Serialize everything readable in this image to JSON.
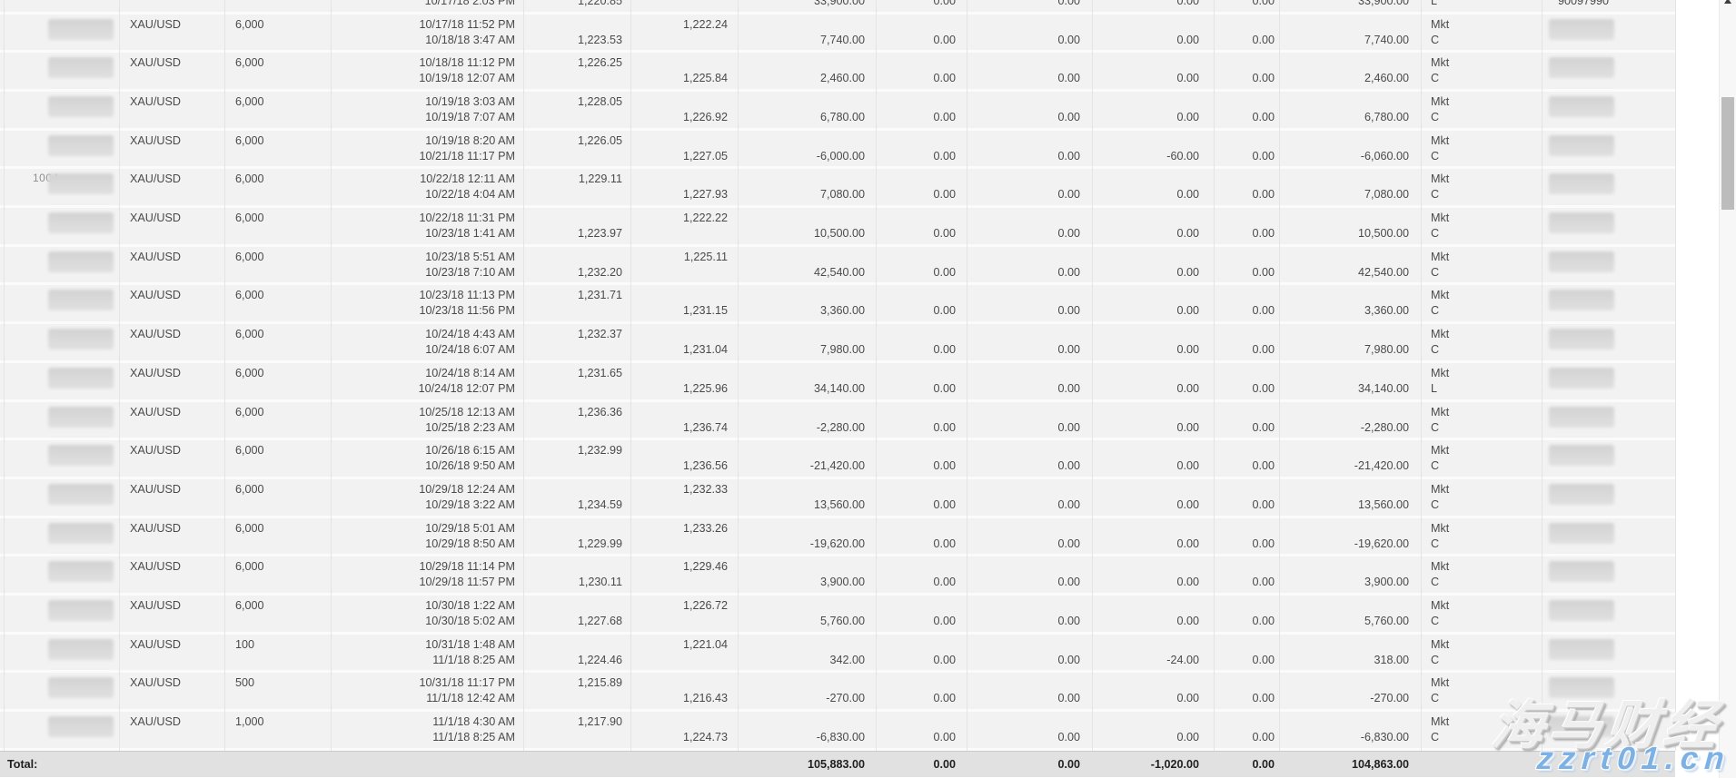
{
  "table": {
    "columns": [
      "trade-id",
      "market",
      "quantity",
      "open-close-time",
      "sold-price",
      "bought-price",
      "pnl",
      "commission",
      "fees",
      "rollover",
      "adjustment",
      "net-pnl",
      "order-type",
      "ticket"
    ],
    "partial_row": {
      "close_time": "10/17/18 2:03 PM",
      "sold_price": "1,220.85",
      "pnl": "33,900.00",
      "col_a": "0.00",
      "col_b": "0.00",
      "col_c": "0.00",
      "col_d": "0.00",
      "net": "33,900.00",
      "order_close": "L",
      "ticket": "90097990"
    },
    "rows": [
      {
        "symbol": "XAU/USD",
        "qty": "6,000",
        "open_time": "10/17/18 11:52 PM",
        "close_time": "10/18/18 3:47 AM",
        "sold_price": "1,223.53",
        "sold_line": 2,
        "bought_price": "1,222.24",
        "bought_line": 1,
        "pnl": "7,740.00",
        "col_a": "0.00",
        "col_b": "0.00",
        "col_c": "0.00",
        "col_d": "0.00",
        "net": "7,740.00",
        "order_open": "Mkt",
        "order_close": "C"
      },
      {
        "symbol": "XAU/USD",
        "qty": "6,000",
        "open_time": "10/18/18 11:12 PM",
        "close_time": "10/19/18 12:07 AM",
        "sold_price": "1,226.25",
        "sold_line": 1,
        "bought_price": "1,225.84",
        "bought_line": 2,
        "pnl": "2,460.00",
        "col_a": "0.00",
        "col_b": "0.00",
        "col_c": "0.00",
        "col_d": "0.00",
        "net": "2,460.00",
        "order_open": "Mkt",
        "order_close": "C"
      },
      {
        "symbol": "XAU/USD",
        "qty": "6,000",
        "open_time": "10/19/18 3:03 AM",
        "close_time": "10/19/18 7:07 AM",
        "sold_price": "1,228.05",
        "sold_line": 1,
        "bought_price": "1,226.92",
        "bought_line": 2,
        "pnl": "6,780.00",
        "col_a": "0.00",
        "col_b": "0.00",
        "col_c": "0.00",
        "col_d": "0.00",
        "net": "6,780.00",
        "order_open": "Mkt",
        "order_close": "C"
      },
      {
        "symbol": "XAU/USD",
        "qty": "6,000",
        "open_time": "10/19/18 8:20 AM",
        "close_time": "10/21/18 11:17 PM",
        "sold_price": "1,226.05",
        "sold_line": 1,
        "bought_price": "1,227.05",
        "bought_line": 2,
        "pnl": "-6,000.00",
        "col_a": "0.00",
        "col_b": "0.00",
        "col_c": "-60.00",
        "col_d": "0.00",
        "net": "-6,060.00",
        "order_open": "Mkt",
        "order_close": "C"
      },
      {
        "symbol": "XAU/USD",
        "qty": "6,000",
        "open_time": "10/22/18 12:11 AM",
        "close_time": "10/22/18 4:04 AM",
        "sold_price": "1,229.11",
        "sold_line": 1,
        "bought_price": "1,227.93",
        "bought_line": 2,
        "pnl": "7,080.00",
        "col_a": "0.00",
        "col_b": "0.00",
        "col_c": "0.00",
        "col_d": "0.00",
        "net": "7,080.00",
        "order_open": "Mkt",
        "order_close": "C",
        "id_hint": "1004"
      },
      {
        "symbol": "XAU/USD",
        "qty": "6,000",
        "open_time": "10/22/18 11:31 PM",
        "close_time": "10/23/18 1:41 AM",
        "sold_price": "1,223.97",
        "sold_line": 2,
        "bought_price": "1,222.22",
        "bought_line": 1,
        "pnl": "10,500.00",
        "col_a": "0.00",
        "col_b": "0.00",
        "col_c": "0.00",
        "col_d": "0.00",
        "net": "10,500.00",
        "order_open": "Mkt",
        "order_close": "C"
      },
      {
        "symbol": "XAU/USD",
        "qty": "6,000",
        "open_time": "10/23/18 5:51 AM",
        "close_time": "10/23/18 7:10 AM",
        "sold_price": "1,232.20",
        "sold_line": 2,
        "bought_price": "1,225.11",
        "bought_line": 1,
        "pnl": "42,540.00",
        "col_a": "0.00",
        "col_b": "0.00",
        "col_c": "0.00",
        "col_d": "0.00",
        "net": "42,540.00",
        "order_open": "Mkt",
        "order_close": "C"
      },
      {
        "symbol": "XAU/USD",
        "qty": "6,000",
        "open_time": "10/23/18 11:13 PM",
        "close_time": "10/23/18 11:56 PM",
        "sold_price": "1,231.71",
        "sold_line": 1,
        "bought_price": "1,231.15",
        "bought_line": 2,
        "pnl": "3,360.00",
        "col_a": "0.00",
        "col_b": "0.00",
        "col_c": "0.00",
        "col_d": "0.00",
        "net": "3,360.00",
        "order_open": "Mkt",
        "order_close": "C"
      },
      {
        "symbol": "XAU/USD",
        "qty": "6,000",
        "open_time": "10/24/18 4:43 AM",
        "close_time": "10/24/18 6:07 AM",
        "sold_price": "1,232.37",
        "sold_line": 1,
        "bought_price": "1,231.04",
        "bought_line": 2,
        "pnl": "7,980.00",
        "col_a": "0.00",
        "col_b": "0.00",
        "col_c": "0.00",
        "col_d": "0.00",
        "net": "7,980.00",
        "order_open": "Mkt",
        "order_close": "C"
      },
      {
        "symbol": "XAU/USD",
        "qty": "6,000",
        "open_time": "10/24/18 8:14 AM",
        "close_time": "10/24/18 12:07 PM",
        "sold_price": "1,231.65",
        "sold_line": 1,
        "bought_price": "1,225.96",
        "bought_line": 2,
        "pnl": "34,140.00",
        "col_a": "0.00",
        "col_b": "0.00",
        "col_c": "0.00",
        "col_d": "0.00",
        "net": "34,140.00",
        "order_open": "Mkt",
        "order_close": "L"
      },
      {
        "symbol": "XAU/USD",
        "qty": "6,000",
        "open_time": "10/25/18 12:13 AM",
        "close_time": "10/25/18 2:23 AM",
        "sold_price": "1,236.36",
        "sold_line": 1,
        "bought_price": "1,236.74",
        "bought_line": 2,
        "pnl": "-2,280.00",
        "col_a": "0.00",
        "col_b": "0.00",
        "col_c": "0.00",
        "col_d": "0.00",
        "net": "-2,280.00",
        "order_open": "Mkt",
        "order_close": "C"
      },
      {
        "symbol": "XAU/USD",
        "qty": "6,000",
        "open_time": "10/26/18 6:15 AM",
        "close_time": "10/26/18 9:50 AM",
        "sold_price": "1,232.99",
        "sold_line": 1,
        "bought_price": "1,236.56",
        "bought_line": 2,
        "pnl": "-21,420.00",
        "col_a": "0.00",
        "col_b": "0.00",
        "col_c": "0.00",
        "col_d": "0.00",
        "net": "-21,420.00",
        "order_open": "Mkt",
        "order_close": "C"
      },
      {
        "symbol": "XAU/USD",
        "qty": "6,000",
        "open_time": "10/29/18 12:24 AM",
        "close_time": "10/29/18 3:22 AM",
        "sold_price": "1,234.59",
        "sold_line": 2,
        "bought_price": "1,232.33",
        "bought_line": 1,
        "pnl": "13,560.00",
        "col_a": "0.00",
        "col_b": "0.00",
        "col_c": "0.00",
        "col_d": "0.00",
        "net": "13,560.00",
        "order_open": "Mkt",
        "order_close": "C"
      },
      {
        "symbol": "XAU/USD",
        "qty": "6,000",
        "open_time": "10/29/18 5:01 AM",
        "close_time": "10/29/18 8:50 AM",
        "sold_price": "1,229.99",
        "sold_line": 2,
        "bought_price": "1,233.26",
        "bought_line": 1,
        "pnl": "-19,620.00",
        "col_a": "0.00",
        "col_b": "0.00",
        "col_c": "0.00",
        "col_d": "0.00",
        "net": "-19,620.00",
        "order_open": "Mkt",
        "order_close": "C"
      },
      {
        "symbol": "XAU/USD",
        "qty": "6,000",
        "open_time": "10/29/18 11:14 PM",
        "close_time": "10/29/18 11:57 PM",
        "sold_price": "1,230.11",
        "sold_line": 2,
        "bought_price": "1,229.46",
        "bought_line": 1,
        "pnl": "3,900.00",
        "col_a": "0.00",
        "col_b": "0.00",
        "col_c": "0.00",
        "col_d": "0.00",
        "net": "3,900.00",
        "order_open": "Mkt",
        "order_close": "C"
      },
      {
        "symbol": "XAU/USD",
        "qty": "6,000",
        "open_time": "10/30/18 1:22 AM",
        "close_time": "10/30/18 5:02 AM",
        "sold_price": "1,227.68",
        "sold_line": 2,
        "bought_price": "1,226.72",
        "bought_line": 1,
        "pnl": "5,760.00",
        "col_a": "0.00",
        "col_b": "0.00",
        "col_c": "0.00",
        "col_d": "0.00",
        "net": "5,760.00",
        "order_open": "Mkt",
        "order_close": "C"
      },
      {
        "symbol": "XAU/USD",
        "qty": "100",
        "open_time": "10/31/18 1:48 AM",
        "close_time": "11/1/18 8:25 AM",
        "sold_price": "1,224.46",
        "sold_line": 2,
        "bought_price": "1,221.04",
        "bought_line": 1,
        "pnl": "342.00",
        "col_a": "0.00",
        "col_b": "0.00",
        "col_c": "-24.00",
        "col_d": "0.00",
        "net": "318.00",
        "order_open": "Mkt",
        "order_close": "C"
      },
      {
        "symbol": "XAU/USD",
        "qty": "500",
        "open_time": "10/31/18 11:17 PM",
        "close_time": "11/1/18 12:42 AM",
        "sold_price": "1,215.89",
        "sold_line": 1,
        "bought_price": "1,216.43",
        "bought_line": 2,
        "pnl": "-270.00",
        "col_a": "0.00",
        "col_b": "0.00",
        "col_c": "0.00",
        "col_d": "0.00",
        "net": "-270.00",
        "order_open": "Mkt",
        "order_close": "C"
      },
      {
        "symbol": "XAU/USD",
        "qty": "1,000",
        "open_time": "11/1/18 4:30 AM",
        "close_time": "11/1/18 8:25 AM",
        "sold_price": "1,217.90",
        "sold_line": 1,
        "bought_price": "1,224.73",
        "bought_line": 2,
        "pnl": "-6,830.00",
        "col_a": "0.00",
        "col_b": "0.00",
        "col_c": "0.00",
        "col_d": "0.00",
        "net": "-6,830.00",
        "order_open": "Mkt",
        "order_close": "C"
      }
    ],
    "total": {
      "label": "Total:",
      "pnl": "105,883.00",
      "col_a": "0.00",
      "col_b": "0.00",
      "col_c": "-1,020.00",
      "col_d": "0.00",
      "net": "104,863.00"
    }
  },
  "watermark": {
    "line1": "海马财经",
    "line2": "zzrt01.cn",
    "blue": "#7db1e3"
  },
  "colors": {
    "row_bg": "#f2f2f2",
    "row_separator": "#fbfbfb",
    "column_line": "#e4e4e4",
    "total_bg": "#e1e1e1",
    "text": "#4a4a4a",
    "scroll_thumb": "#bcbcbc"
  }
}
